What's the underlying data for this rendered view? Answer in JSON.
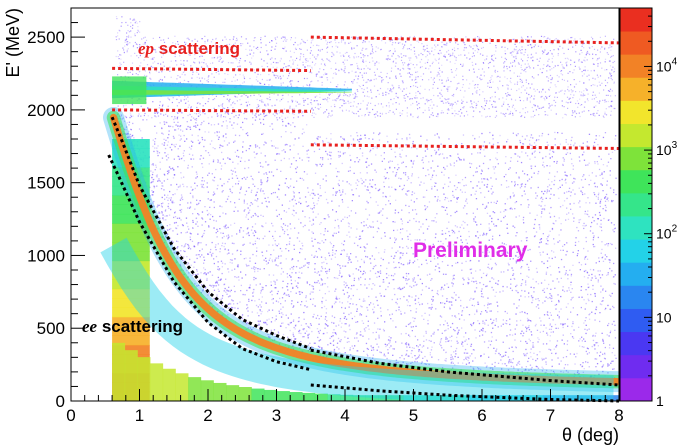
{
  "chart_data": {
    "type": "heatmap",
    "xlabel": "θ (deg)",
    "ylabel": "E' (MeV)",
    "xlim": [
      0,
      8
    ],
    "ylim": [
      0,
      2700
    ],
    "z_scale": "log",
    "zlim": [
      1,
      50000
    ],
    "x_ticks": [
      "0",
      "1",
      "2",
      "3",
      "4",
      "5",
      "6",
      "7",
      "8"
    ],
    "y_ticks": [
      "0",
      "500",
      "1000",
      "1500",
      "2000",
      "2500"
    ],
    "colorbar_ticks": [
      {
        "value": 1,
        "label": "1"
      },
      {
        "value": 10,
        "label": "10"
      },
      {
        "value": 100,
        "label": "10",
        "exp": "2"
      },
      {
        "value": 1000,
        "label": "10",
        "exp": "3"
      },
      {
        "value": 10000,
        "label": "10",
        "exp": "4"
      }
    ],
    "annotations": {
      "ep_prefix": "ep",
      "ep_suffix": " scattering",
      "ee_prefix": "ee",
      "ee_suffix": " scattering",
      "preliminary": "Preliminary"
    },
    "red_cut_lines": [
      {
        "x": [
          0.6,
          3.5
        ],
        "y": [
          2285,
          2270
        ]
      },
      {
        "x": [
          0.6,
          3.5
        ],
        "y": [
          2000,
          1990
        ]
      },
      {
        "x": [
          3.5,
          8.0
        ],
        "y": [
          2500,
          2460
        ]
      },
      {
        "x": [
          3.5,
          8.0
        ],
        "y": [
          1760,
          1735
        ]
      }
    ],
    "black_cut_lines": [
      {
        "x": [
          0.6,
          0.75,
          1.0,
          1.5,
          2.0,
          2.5,
          3.0,
          3.5
        ],
        "y": [
          1950,
          1780,
          1480,
          1050,
          750,
          560,
          450,
          360
        ]
      },
      {
        "x": [
          0.55,
          0.7,
          1.0,
          1.5,
          2.0,
          2.5,
          3.0,
          3.5
        ],
        "y": [
          1690,
          1540,
          1230,
          820,
          540,
          360,
          270,
          215
        ]
      },
      {
        "x": [
          3.5,
          4.5,
          5.5,
          6.5,
          7.0,
          8.0
        ],
        "y": [
          350,
          260,
          200,
          160,
          140,
          110
        ]
      },
      {
        "x": [
          3.5,
          4.5,
          5.5,
          6.5,
          7.0,
          8.0
        ],
        "y": [
          110,
          70,
          40,
          20,
          10,
          0
        ]
      }
    ],
    "density_bands": [
      {
        "region": "ee elastic ridge",
        "x": [
          0.6,
          8.0
        ],
        "peak_log10_counts": 4.5
      },
      {
        "region": "ep elastic band",
        "x": [
          0.6,
          3.5
        ],
        "y": [
          2000,
          2280
        ],
        "peak_log10_counts": 4.0
      },
      {
        "region": "low-E radiative tail",
        "x": [
          0.6,
          1.2
        ],
        "y": [
          0,
          1800
        ],
        "peak_log10_counts": 3.5
      }
    ],
    "colors": {
      "red_lines": "#e8211f",
      "black_lines": "#000000",
      "preliminary": "#e02de8",
      "background_scatter": "#7f5cff"
    }
  }
}
